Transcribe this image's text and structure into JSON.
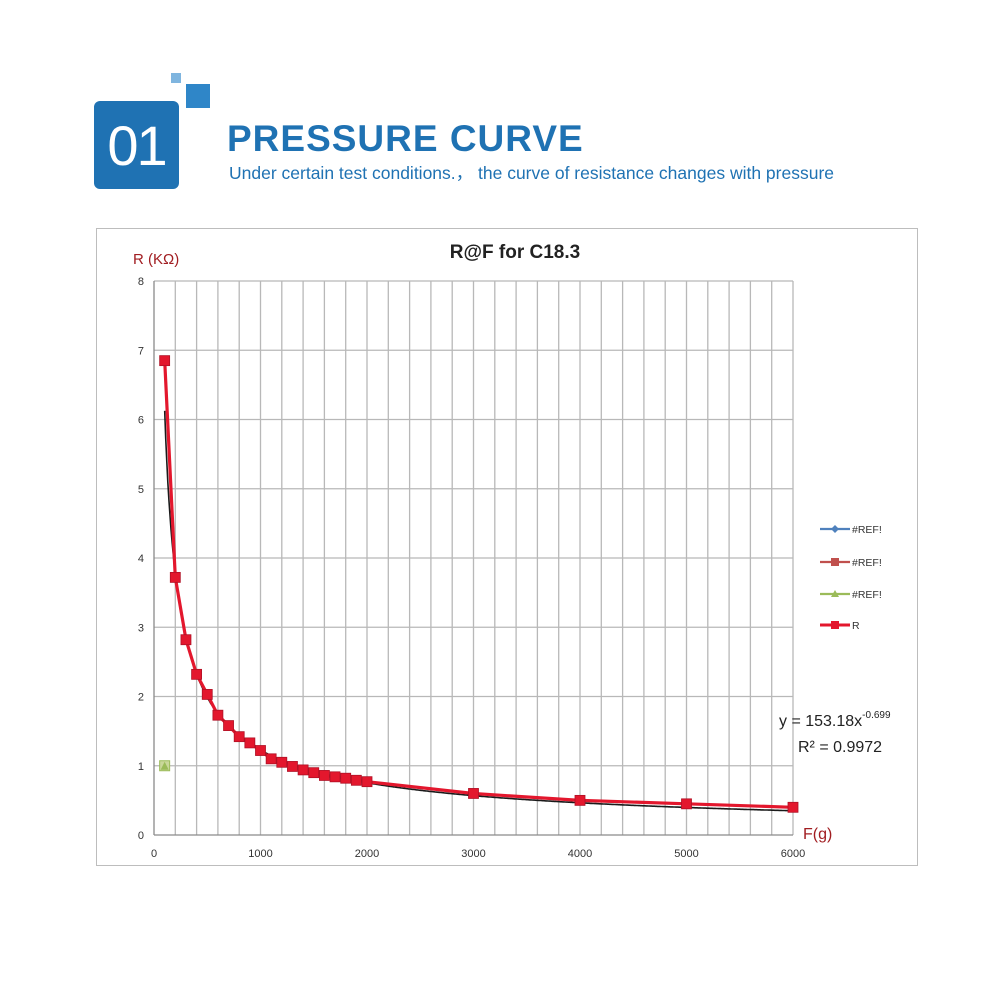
{
  "header": {
    "number": "01",
    "title": "PRESSURE CURVE",
    "subtitle": "Under certain test conditions.， the curve of resistance changes with pressure"
  },
  "colors": {
    "accent": "#1f72b3",
    "series_ref1": "#4f81bd",
    "series_ref2": "#c0504d",
    "series_ref3": "#9bbb59",
    "series_r": "#e3172d",
    "trend": "#1a1a1a"
  },
  "chart_data": {
    "type": "scatter",
    "title": "R@F  for C18.3",
    "xlabel": "F(g)",
    "ylabel": "R (KΩ)",
    "xlim": [
      0,
      6000
    ],
    "ylim": [
      0,
      8
    ],
    "xticks": [
      "0",
      "1000",
      "2000",
      "3000",
      "4000",
      "5000",
      "6000"
    ],
    "yticks": [
      "0",
      "1",
      "2",
      "3",
      "4",
      "5",
      "6",
      "7",
      "8"
    ],
    "grid": true,
    "legend_position": "right",
    "series": [
      {
        "name": "#REF!",
        "marker": "diamond",
        "x": [],
        "y": []
      },
      {
        "name": "#REF!",
        "marker": "square",
        "x": [],
        "y": []
      },
      {
        "name": "#REF!",
        "marker": "triangle",
        "x": [
          100
        ],
        "y": [
          1.0
        ]
      },
      {
        "name": "R",
        "marker": "square",
        "x": [
          100,
          200,
          300,
          400,
          500,
          600,
          700,
          800,
          900,
          1000,
          1100,
          1200,
          1300,
          1400,
          1500,
          1600,
          1700,
          1800,
          1900,
          2000,
          3000,
          4000,
          5000,
          6000
        ],
        "y": [
          6.85,
          3.72,
          2.82,
          2.32,
          2.03,
          1.73,
          1.58,
          1.42,
          1.33,
          1.22,
          1.1,
          1.05,
          0.99,
          0.94,
          0.9,
          0.86,
          0.84,
          0.82,
          0.79,
          0.77,
          0.6,
          0.5,
          0.45,
          0.4
        ]
      }
    ],
    "trendline": {
      "equation_main": "y = 153.18x",
      "equation_exp": "-0.699",
      "r_squared": "R² = 0.9972",
      "coefficient": 153.18,
      "exponent": -0.699
    }
  }
}
